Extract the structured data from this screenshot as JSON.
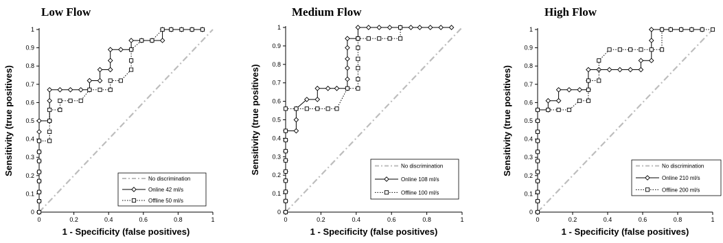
{
  "chart_data": [
    {
      "type": "line",
      "title": "Low Flow",
      "xlabel": "1 - Specificity (false positives)",
      "ylabel": "Sensitivity (true positives)",
      "xlim": [
        0,
        1
      ],
      "ylim": [
        0,
        1
      ],
      "xticks": [
        "0",
        "0.2",
        "0.4",
        "0.6",
        "0.8",
        "1"
      ],
      "yticks": [
        "0",
        "0.1",
        "0.2",
        "0.3",
        "0.4",
        "0.5",
        "0.6",
        "0.7",
        "0.8",
        "0.9",
        "1"
      ],
      "legend_position": "bottom-right",
      "series": [
        {
          "name": "No discrimination",
          "style": "dash-dot",
          "color": "#bdbdbd",
          "x": [
            0,
            1
          ],
          "y": [
            0,
            1
          ]
        },
        {
          "name": "Online 42 ml/s",
          "style": "solid",
          "marker": "diamond",
          "color": "#000000",
          "x": [
            0,
            0,
            0,
            0,
            0,
            0,
            0,
            0,
            0,
            0,
            0.06,
            0.06,
            0.06,
            0.12,
            0.18,
            0.24,
            0.29,
            0.29,
            0.35,
            0.35,
            0.41,
            0.41,
            0.41,
            0.47,
            0.53,
            0.53,
            0.59,
            0.65,
            0.71,
            0.71,
            0.76,
            0.82,
            0.88,
            0.94
          ],
          "y": [
            0,
            0.06,
            0.11,
            0.17,
            0.22,
            0.28,
            0.33,
            0.39,
            0.44,
            0.5,
            0.5,
            0.61,
            0.67,
            0.67,
            0.67,
            0.67,
            0.67,
            0.72,
            0.72,
            0.78,
            0.78,
            0.83,
            0.89,
            0.89,
            0.89,
            0.94,
            0.94,
            0.94,
            0.94,
            1,
            1,
            1,
            1,
            1
          ]
        },
        {
          "name": "Offline 50 ml/s",
          "style": "dotted",
          "marker": "square",
          "color": "#000000",
          "x": [
            0,
            0,
            0,
            0,
            0,
            0,
            0,
            0,
            0.06,
            0.06,
            0.06,
            0.06,
            0.12,
            0.12,
            0.18,
            0.24,
            0.29,
            0.35,
            0.41,
            0.41,
            0.47,
            0.53,
            0.53,
            0.53,
            0.59,
            0.65,
            0.71,
            0.76,
            0.82,
            0.88,
            0.94
          ],
          "y": [
            0,
            0.06,
            0.11,
            0.17,
            0.22,
            0.28,
            0.33,
            0.39,
            0.39,
            0.44,
            0.5,
            0.56,
            0.56,
            0.61,
            0.61,
            0.61,
            0.67,
            0.67,
            0.67,
            0.72,
            0.72,
            0.78,
            0.83,
            0.89,
            0.94,
            0.94,
            1,
            1,
            1,
            1,
            1
          ]
        }
      ]
    },
    {
      "type": "line",
      "title": "Medium Flow",
      "xlabel": "1 - Specificity (false positives)",
      "ylabel": "Sensitivity (true positives)",
      "xlim": [
        0,
        1
      ],
      "ylim": [
        0,
        1
      ],
      "xticks": [
        "0",
        "0.2",
        "0.4",
        "0.6",
        "0.8",
        "1"
      ],
      "yticks": [
        "0",
        "0.1",
        "0.2",
        "0.3",
        "0.4",
        "0.5",
        "0.6",
        "0.7",
        "0.8",
        "0.9",
        "1"
      ],
      "legend_position": "bottom-right",
      "series": [
        {
          "name": "No discrimination",
          "style": "dash-dot",
          "color": "#bdbdbd",
          "x": [
            0,
            1
          ],
          "y": [
            0,
            1
          ]
        },
        {
          "name": "Online 108 ml/s",
          "style": "solid",
          "marker": "diamond",
          "color": "#000000",
          "x": [
            0,
            0,
            0,
            0,
            0,
            0,
            0,
            0,
            0,
            0.06,
            0.06,
            0.06,
            0.12,
            0.18,
            0.18,
            0.24,
            0.29,
            0.35,
            0.35,
            0.35,
            0.35,
            0.35,
            0.35,
            0.41,
            0.41,
            0.47,
            0.53,
            0.59,
            0.65,
            0.71,
            0.76,
            0.82,
            0.88,
            0.94
          ],
          "y": [
            0,
            0.06,
            0.11,
            0.17,
            0.22,
            0.28,
            0.33,
            0.39,
            0.44,
            0.44,
            0.5,
            0.56,
            0.61,
            0.61,
            0.67,
            0.67,
            0.67,
            0.67,
            0.72,
            0.78,
            0.83,
            0.89,
            0.94,
            0.94,
            1,
            1,
            1,
            1,
            1,
            1,
            1,
            1,
            1,
            1
          ]
        },
        {
          "name": "Offline 100 ml/s",
          "style": "dotted",
          "marker": "square",
          "color": "#000000",
          "x": [
            0,
            0,
            0,
            0,
            0,
            0,
            0,
            0,
            0,
            0,
            0.06,
            0.12,
            0.18,
            0.24,
            0.29,
            0.35,
            0.41,
            0.41,
            0.41,
            0.41,
            0.41,
            0.41,
            0.41,
            0.47,
            0.53,
            0.59,
            0.65,
            0.65
          ],
          "y": [
            0,
            0.06,
            0.11,
            0.17,
            0.22,
            0.28,
            0.33,
            0.39,
            0.44,
            0.56,
            0.56,
            0.56,
            0.56,
            0.56,
            0.56,
            0.67,
            0.67,
            0.72,
            0.78,
            0.83,
            0.89,
            0.94,
            0.94,
            0.94,
            0.94,
            0.94,
            0.94,
            1
          ]
        }
      ]
    },
    {
      "type": "line",
      "title": "High Flow",
      "xlabel": "1 - Specificity (false positives)",
      "ylabel": "Sensitivity (true positives)",
      "xlim": [
        0,
        1
      ],
      "ylim": [
        0,
        1
      ],
      "xticks": [
        "0",
        "0.2",
        "0.4",
        "0.6",
        "0.8",
        "1"
      ],
      "yticks": [
        "0",
        "0.1",
        "0.2",
        "0.3",
        "0.4",
        "0.5",
        "0.6",
        "0.7",
        "0.8",
        "0.9",
        "1"
      ],
      "legend_position": "bottom-right",
      "series": [
        {
          "name": "No discrimination",
          "style": "dash-dot",
          "color": "#bdbdbd",
          "x": [
            0,
            1
          ],
          "y": [
            0,
            1
          ]
        },
        {
          "name": "Online 210 ml/s",
          "style": "solid",
          "marker": "diamond",
          "color": "#000000",
          "x": [
            0,
            0,
            0,
            0,
            0,
            0,
            0,
            0,
            0,
            0,
            0,
            0.06,
            0.06,
            0.12,
            0.12,
            0.18,
            0.24,
            0.29,
            0.29,
            0.29,
            0.35,
            0.41,
            0.47,
            0.53,
            0.59,
            0.59,
            0.65,
            0.65,
            0.65,
            0.71,
            0.76,
            0.82,
            0.88,
            0.94
          ],
          "y": [
            0,
            0.06,
            0.11,
            0.17,
            0.22,
            0.28,
            0.33,
            0.39,
            0.44,
            0.5,
            0.56,
            0.56,
            0.61,
            0.61,
            0.67,
            0.67,
            0.67,
            0.67,
            0.72,
            0.78,
            0.78,
            0.78,
            0.78,
            0.78,
            0.78,
            0.83,
            0.83,
            0.94,
            1,
            1,
            1,
            1,
            1,
            1
          ]
        },
        {
          "name": "Offline 200 ml/s",
          "style": "dotted",
          "marker": "square",
          "color": "#000000",
          "x": [
            0,
            0,
            0,
            0,
            0,
            0,
            0,
            0,
            0,
            0,
            0,
            0.06,
            0.12,
            0.18,
            0.24,
            0.29,
            0.29,
            0.29,
            0.35,
            0.35,
            0.41,
            0.47,
            0.53,
            0.59,
            0.65,
            0.71,
            0.71,
            0.76,
            0.82,
            0.88,
            0.94,
            1
          ],
          "y": [
            0,
            0.06,
            0.11,
            0.17,
            0.22,
            0.28,
            0.33,
            0.39,
            0.44,
            0.5,
            0.56,
            0.56,
            0.56,
            0.56,
            0.61,
            0.61,
            0.67,
            0.72,
            0.72,
            0.83,
            0.89,
            0.89,
            0.89,
            0.89,
            0.89,
            0.89,
            1,
            1,
            1,
            1,
            1,
            1
          ]
        }
      ]
    }
  ]
}
